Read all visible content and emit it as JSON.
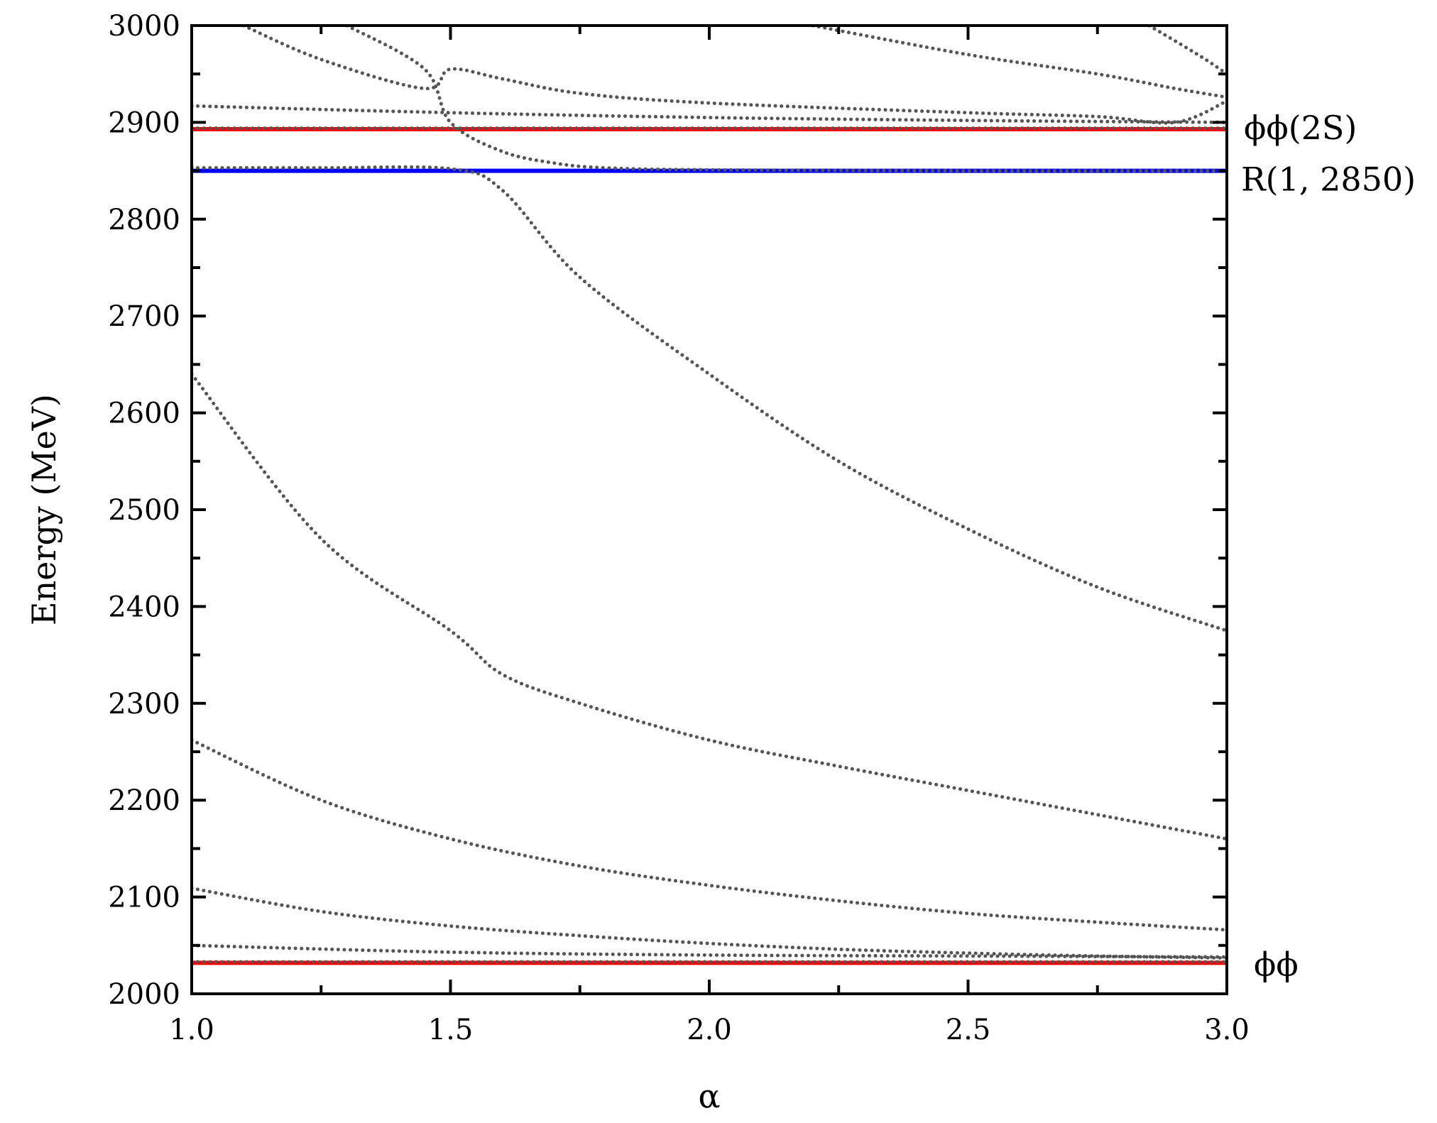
{
  "chart_data": {
    "type": "line",
    "title": "",
    "xlabel": "α",
    "ylabel": "Energy (MeV)",
    "xlim": [
      1.0,
      3.0
    ],
    "ylim": [
      2000,
      3000
    ],
    "x_ticks": [
      "1.0",
      "1.5",
      "2.0",
      "2.5",
      "3.0"
    ],
    "y_ticks": [
      "2000",
      "2100",
      "2200",
      "2300",
      "2400",
      "2500",
      "2600",
      "2700",
      "2800",
      "2900",
      "3000"
    ],
    "grid": false,
    "reference_lines": [
      {
        "label": "ϕϕ(2S)",
        "y": 2893,
        "color": "#ff0000"
      },
      {
        "label": "R(1, 2850)",
        "y": 2850,
        "color": "#0000ff"
      },
      {
        "label": "ϕϕ",
        "y": 2032,
        "color": "#ff0000"
      }
    ],
    "series_color": "#555555",
    "series": [
      {
        "x": [
          1.0,
          2.0,
          3.0
        ],
        "y": [
          2033,
          2033,
          2033
        ]
      },
      {
        "x": [
          1.0,
          1.5,
          2.0,
          2.5,
          3.0
        ],
        "y": [
          2050,
          2043,
          2040,
          2039,
          2038
        ]
      },
      {
        "x": [
          1.0,
          1.25,
          1.5,
          1.75,
          2.0,
          2.25,
          2.5,
          2.75,
          3.0
        ],
        "y": [
          2109,
          2085,
          2070,
          2060,
          2052,
          2046,
          2042,
          2039,
          2037
        ]
      },
      {
        "x": [
          1.0,
          1.25,
          1.5,
          1.75,
          2.0,
          2.25,
          2.5,
          2.75,
          3.0
        ],
        "y": [
          2262,
          2200,
          2160,
          2132,
          2112,
          2096,
          2083,
          2074,
          2066
        ]
      },
      {
        "x": [
          1.0,
          1.25,
          1.5,
          1.6,
          1.75,
          2.0,
          2.25,
          2.5,
          2.75,
          3.0
        ],
        "y": [
          2640,
          2470,
          2375,
          2330,
          2300,
          2262,
          2235,
          2210,
          2185,
          2160
        ]
      },
      {
        "x": [
          1.0,
          1.25,
          1.5,
          1.6,
          1.75,
          2.0,
          2.25,
          2.5,
          2.75,
          3.0
        ],
        "y": [
          2853,
          2853,
          2852,
          2830,
          2740,
          2640,
          2550,
          2480,
          2420,
          2375
        ]
      },
      {
        "x": [
          1.0,
          1.5,
          2.0,
          2.5,
          3.0
        ],
        "y": [
          2894,
          2894,
          2894,
          2894,
          2894
        ]
      },
      {
        "x": [
          1.0,
          1.5,
          2.0,
          2.5,
          3.0
        ],
        "y": [
          2917,
          2910,
          2905,
          2902,
          2900
        ]
      },
      {
        "x": [
          1.3,
          1.45,
          1.5,
          1.6,
          1.7,
          1.8,
          2.0,
          2.5,
          3.0
        ],
        "y": [
          3000,
          2955,
          2900,
          2870,
          2858,
          2853,
          2851,
          2850,
          2850
        ]
      },
      {
        "x": [
          1.1,
          1.25,
          1.45,
          1.5,
          1.6,
          1.75,
          2.0,
          2.5,
          2.75,
          2.9,
          3.0
        ],
        "y": [
          3000,
          2965,
          2935,
          2955,
          2945,
          2930,
          2920,
          2910,
          2906,
          2900,
          2922
        ]
      },
      {
        "x": [
          2.2,
          2.5,
          2.75,
          2.9,
          3.0
        ],
        "y": [
          3000,
          2970,
          2950,
          2935,
          2926
        ]
      },
      {
        "x": [
          2.85,
          2.95,
          3.0
        ],
        "y": [
          3000,
          2968,
          2950
        ]
      }
    ]
  }
}
